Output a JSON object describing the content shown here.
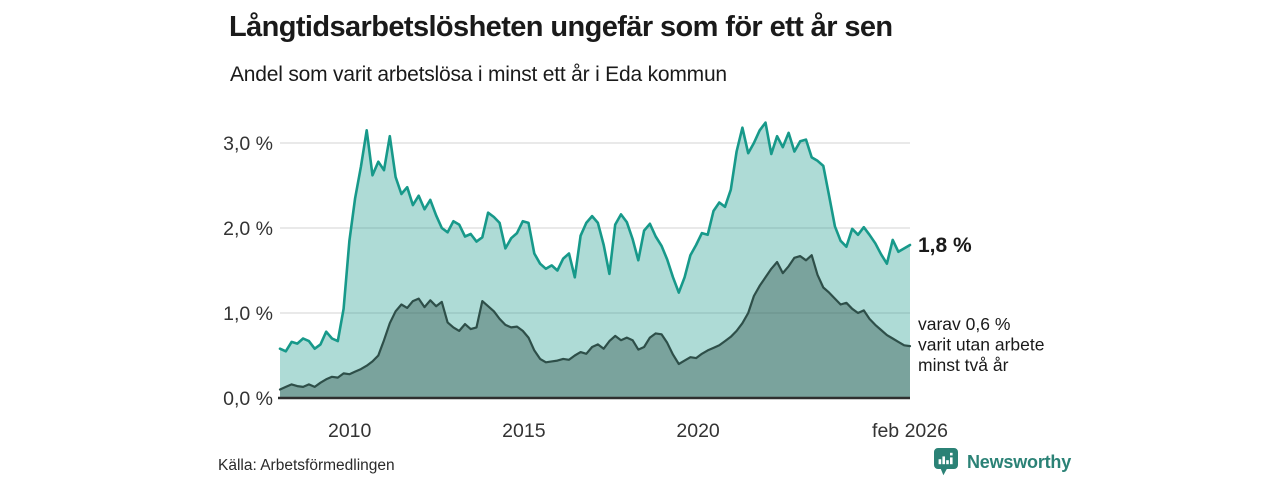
{
  "header": {
    "title": "Långtidsarbetslösheten ungefär som för ett år sen",
    "subtitle": "Andel som varit arbetslösa i minst ett år i Eda kommun"
  },
  "footer": {
    "source": "Källa: Arbetsförmedlingen",
    "brand": "Newsworthy",
    "brand_icon": "newsworthy-speech-bubble-bar-chart-icon",
    "brand_color": "#2b8276"
  },
  "colors": {
    "background": "#ffffff",
    "grid": "#dcdcdc",
    "baseline": "#2f2f2f",
    "axis_text": "#333333",
    "annotation_text": "#1a1a1a"
  },
  "chart_data": {
    "type": "area",
    "title": "Långtidsarbetslösheten ungefär som för ett år sen",
    "subtitle": "Andel som varit arbetslösa i minst ett år i Eda kommun",
    "grid": "horizontal",
    "legend_position": "none",
    "x_start": 2008.0,
    "x_end": 2026.083,
    "ylim": [
      0,
      3.3
    ],
    "x_ticks": [
      {
        "value": 2010,
        "label": "2010"
      },
      {
        "value": 2015,
        "label": "2015"
      },
      {
        "value": 2020,
        "label": "2020"
      },
      {
        "value": 2026.083,
        "label": "feb 2026"
      }
    ],
    "y_ticks": [
      {
        "value": 0,
        "label": "0,0 %"
      },
      {
        "value": 1,
        "label": "1,0 %"
      },
      {
        "value": 2,
        "label": "2,0 %"
      },
      {
        "value": 3,
        "label": "3,0 %"
      }
    ],
    "series": [
      {
        "id": "unemployed-min-one-year",
        "end_value_label": "1,8 %",
        "end_value": 1.8,
        "line_color": "#17998a",
        "fill_color": "rgba(23,153,138,0.35)",
        "values": [
          0.58,
          0.55,
          0.66,
          0.64,
          0.7,
          0.67,
          0.58,
          0.63,
          0.78,
          0.7,
          0.67,
          1.05,
          1.85,
          2.35,
          2.72,
          3.15,
          2.62,
          2.78,
          2.68,
          3.08,
          2.6,
          2.4,
          2.48,
          2.27,
          2.38,
          2.22,
          2.33,
          2.15,
          2.0,
          1.95,
          2.08,
          2.04,
          1.9,
          1.93,
          1.84,
          1.89,
          2.18,
          2.13,
          2.06,
          1.76,
          1.88,
          1.94,
          2.08,
          2.06,
          1.7,
          1.58,
          1.52,
          1.56,
          1.5,
          1.64,
          1.7,
          1.42,
          1.91,
          2.06,
          2.14,
          2.06,
          1.8,
          1.46,
          2.04,
          2.16,
          2.07,
          1.87,
          1.62,
          1.97,
          2.05,
          1.9,
          1.79,
          1.63,
          1.42,
          1.24,
          1.42,
          1.68,
          1.8,
          1.94,
          1.92,
          2.2,
          2.3,
          2.25,
          2.45,
          2.9,
          3.18,
          2.88,
          3.0,
          3.15,
          3.24,
          2.87,
          3.08,
          2.95,
          3.12,
          2.9,
          3.02,
          3.04,
          2.83,
          2.79,
          2.73,
          2.38,
          2.02,
          1.85,
          1.78,
          1.99,
          1.92,
          2.01,
          1.92,
          1.82,
          1.69,
          1.58,
          1.86,
          1.72,
          1.76,
          1.8
        ]
      },
      {
        "id": "unemployed-min-two-years",
        "end_value_label_lines": [
          "varav 0,6 %",
          "varit utan arbete",
          "minst två år"
        ],
        "end_value": 0.6,
        "line_color": "#2e4f49",
        "fill_color": "rgba(46,79,73,0.40)",
        "values": [
          0.1,
          0.13,
          0.16,
          0.14,
          0.13,
          0.16,
          0.13,
          0.18,
          0.22,
          0.25,
          0.24,
          0.29,
          0.28,
          0.31,
          0.34,
          0.38,
          0.43,
          0.5,
          0.68,
          0.88,
          1.02,
          1.1,
          1.06,
          1.14,
          1.17,
          1.07,
          1.15,
          1.08,
          1.13,
          0.89,
          0.83,
          0.79,
          0.87,
          0.81,
          0.83,
          1.14,
          1.08,
          1.02,
          0.93,
          0.86,
          0.83,
          0.84,
          0.79,
          0.71,
          0.56,
          0.46,
          0.42,
          0.43,
          0.44,
          0.46,
          0.45,
          0.5,
          0.54,
          0.52,
          0.6,
          0.63,
          0.58,
          0.67,
          0.73,
          0.68,
          0.71,
          0.68,
          0.57,
          0.6,
          0.71,
          0.76,
          0.75,
          0.65,
          0.51,
          0.4,
          0.44,
          0.48,
          0.47,
          0.52,
          0.56,
          0.59,
          0.62,
          0.67,
          0.72,
          0.79,
          0.88,
          1.0,
          1.2,
          1.32,
          1.42,
          1.52,
          1.6,
          1.47,
          1.55,
          1.65,
          1.67,
          1.62,
          1.68,
          1.45,
          1.3,
          1.24,
          1.17,
          1.1,
          1.12,
          1.05,
          1.0,
          1.03,
          0.93,
          0.86,
          0.8,
          0.74,
          0.7,
          0.66,
          0.62,
          0.61
        ]
      }
    ]
  }
}
